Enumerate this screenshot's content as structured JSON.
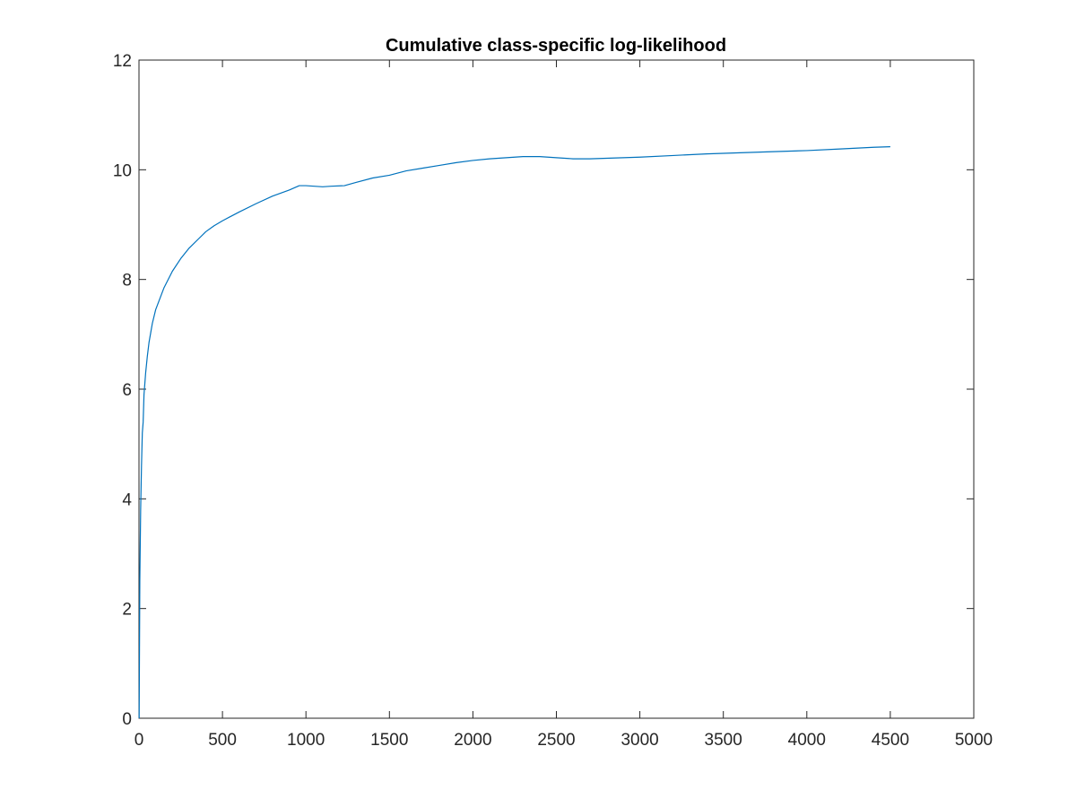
{
  "chart_data": {
    "type": "line",
    "title": "Cumulative class-specific log-likelihood",
    "xlabel": "",
    "ylabel": "",
    "xlim": [
      0,
      5000
    ],
    "ylim": [
      0,
      12
    ],
    "xticks": [
      0,
      500,
      1000,
      1500,
      2000,
      2500,
      3000,
      3500,
      4000,
      4500,
      5000
    ],
    "yticks": [
      0,
      2,
      4,
      6,
      8,
      10,
      12
    ],
    "xtick_labels": [
      "0",
      "500",
      "1000",
      "1500",
      "2000",
      "2500",
      "3000",
      "3500",
      "4000",
      "4500",
      "5000"
    ],
    "ytick_labels": [
      "0",
      "2",
      "4",
      "6",
      "8",
      "10",
      "12"
    ],
    "grid": false,
    "box": true,
    "line_color": "#0072BD",
    "axis_color": "#262626",
    "series": [
      {
        "x": [
          1,
          5,
          10,
          15,
          20,
          25,
          30,
          40,
          50,
          60,
          80,
          100,
          150,
          200,
          250,
          300,
          350,
          400,
          450,
          500,
          550,
          600,
          700,
          800,
          900,
          960,
          1000,
          1050,
          1100,
          1150,
          1230,
          1300,
          1400,
          1500,
          1600,
          1700,
          1800,
          1900,
          2000,
          2100,
          2200,
          2300,
          2400,
          2500,
          2600,
          2650,
          2700,
          2800,
          2900,
          3000,
          3200,
          3400,
          3600,
          3800,
          4000,
          4200,
          4400,
          4500
        ],
        "y": [
          0.0,
          2.5,
          3.8,
          4.6,
          5.2,
          5.4,
          5.9,
          6.3,
          6.6,
          6.85,
          7.2,
          7.45,
          7.85,
          8.15,
          8.38,
          8.57,
          8.72,
          8.87,
          8.98,
          9.07,
          9.15,
          9.23,
          9.38,
          9.52,
          9.63,
          9.71,
          9.71,
          9.7,
          9.69,
          9.7,
          9.71,
          9.77,
          9.85,
          9.9,
          9.98,
          10.03,
          10.08,
          10.13,
          10.17,
          10.2,
          10.22,
          10.24,
          10.24,
          10.22,
          10.2,
          10.2,
          10.2,
          10.21,
          10.22,
          10.23,
          10.26,
          10.29,
          10.31,
          10.33,
          10.35,
          10.38,
          10.41,
          10.42
        ]
      }
    ]
  }
}
